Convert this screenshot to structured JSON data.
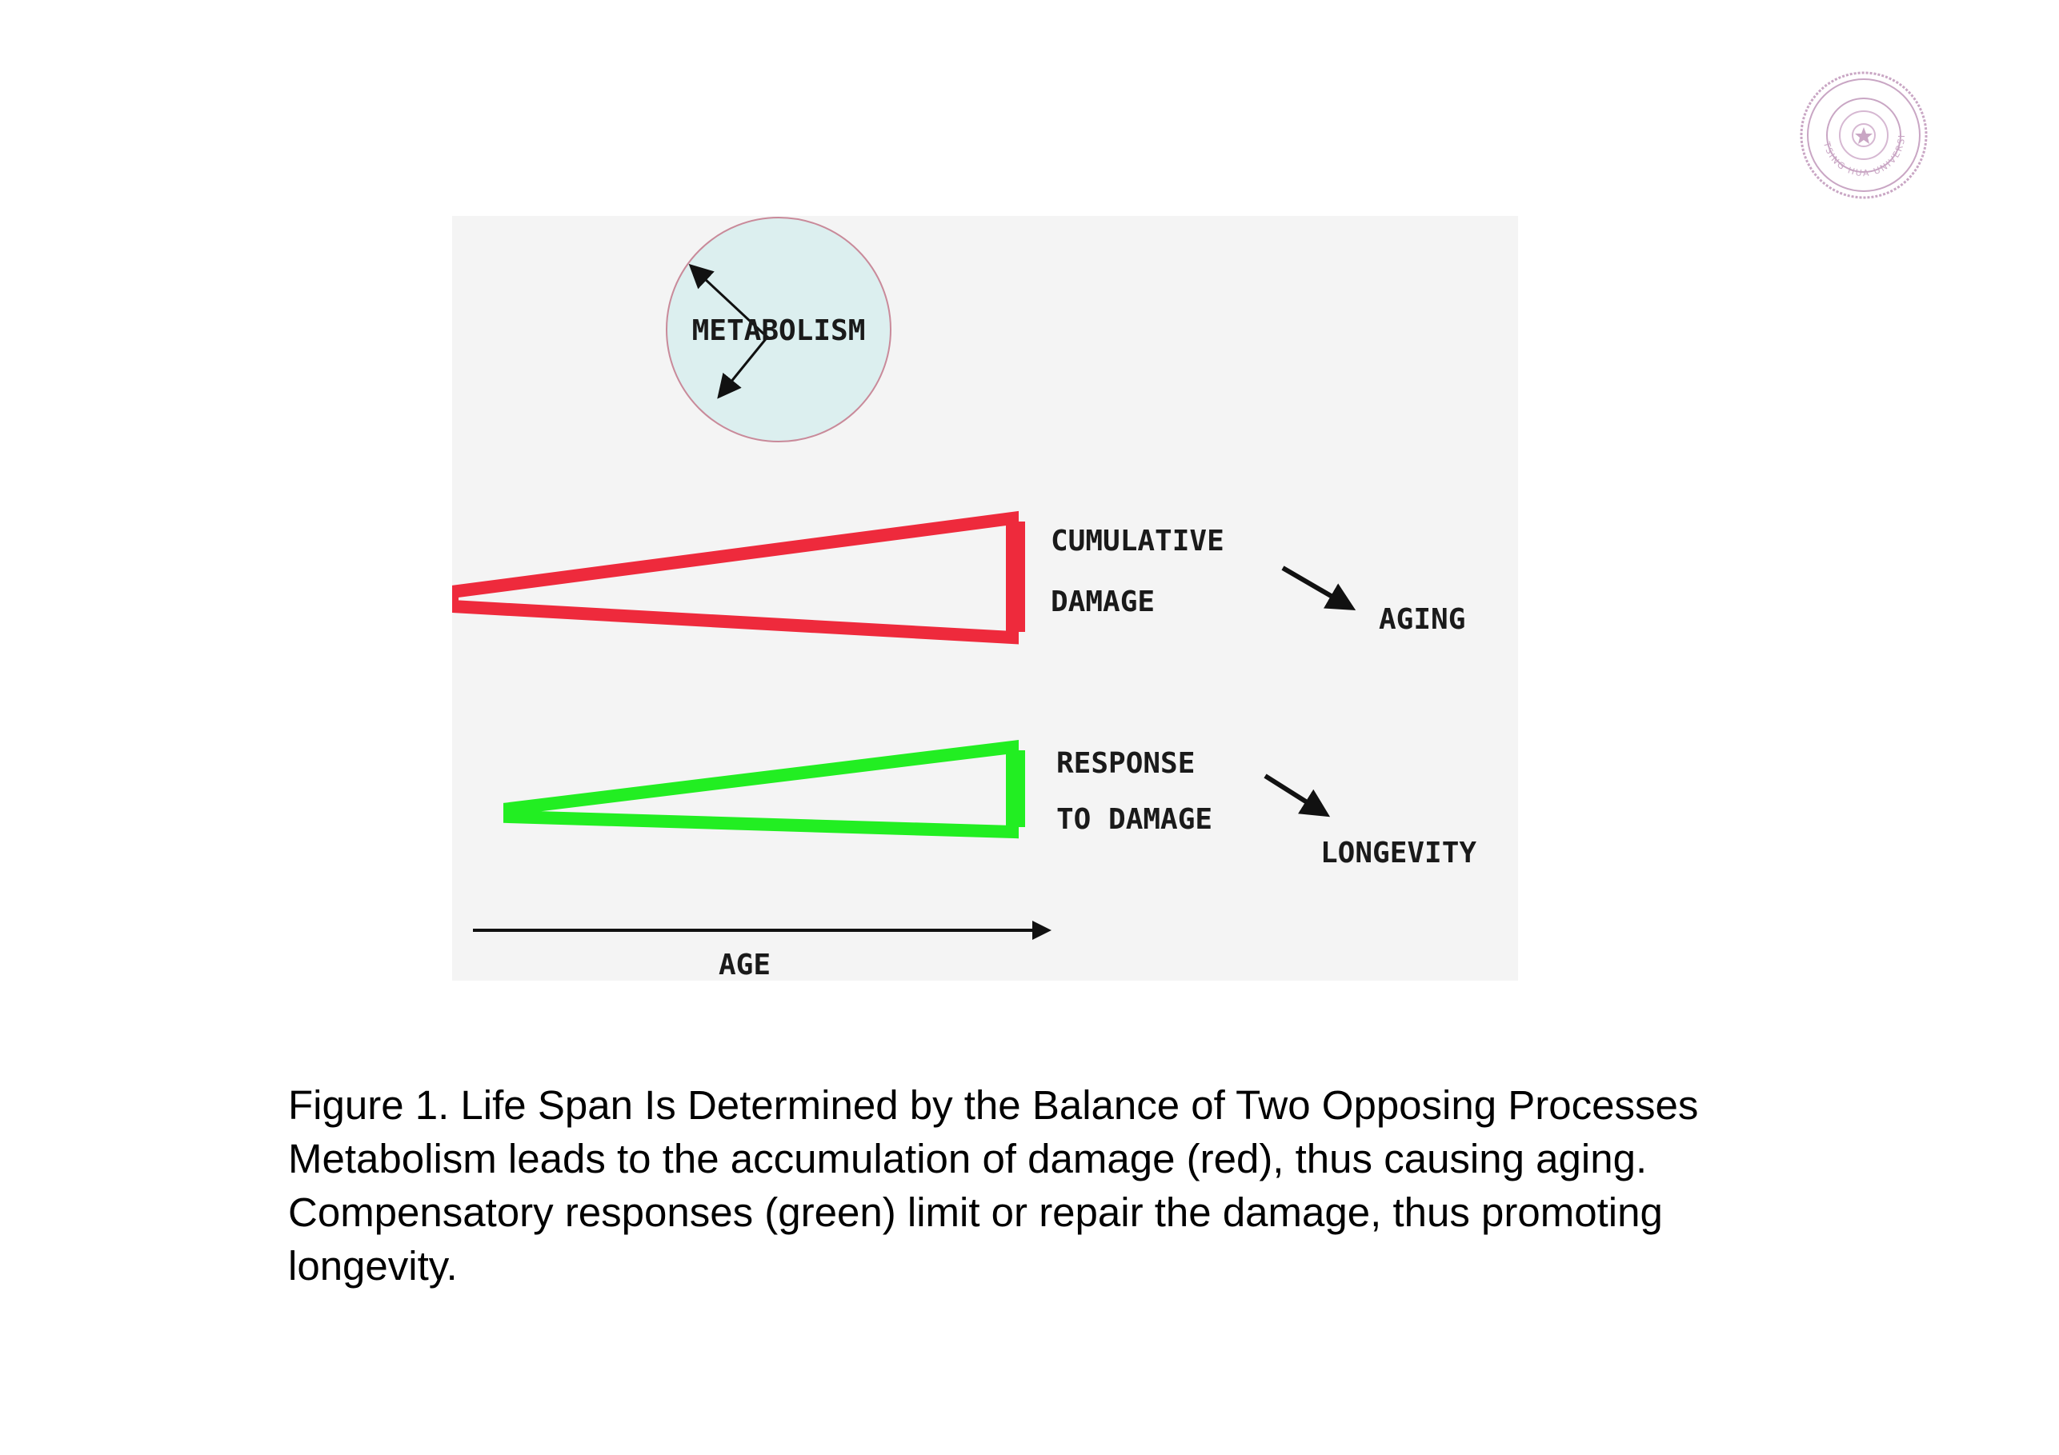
{
  "seal": {
    "icon": "university-seal",
    "text": "TSING HUA UNIVERSITY"
  },
  "diagram": {
    "metabolism_label": "METABOLISM",
    "damage_label_line1": "CUMULATIVE",
    "damage_label_line2": "DAMAGE",
    "aging_label": "AGING",
    "response_label_line1": "RESPONSE",
    "response_label_line2": "TO DAMAGE",
    "longevity_label": "LONGEVITY",
    "age_label": "AGE",
    "colors": {
      "panel_background": "#f4f4f4",
      "circle_fill": "#dcefef",
      "circle_outline": "#c98a9a",
      "damage_wedge": "#ee2a3c",
      "response_wedge": "#22ee22",
      "arrows": "#111111"
    }
  },
  "caption": {
    "line1": "Figure 1. Life Span Is Determined by the Balance of Two Opposing Processes",
    "line2": "Metabolism leads to the accumulation of damage (red), thus causing aging.",
    "line3": "Compensatory responses (green) limit or repair the damage, thus promoting",
    "line4": "longevity."
  }
}
